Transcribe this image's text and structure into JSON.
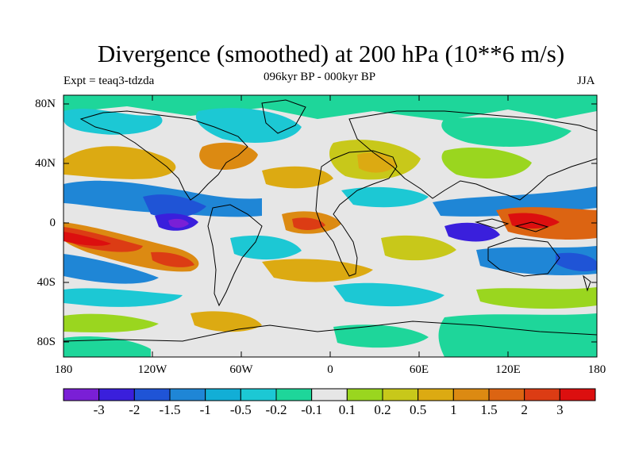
{
  "title": "Divergence (smoothed) at 200 hPa (10**6 m/s)",
  "subtitle": "096kyr BP - 000kyr BP",
  "expt": "Expt = teaq3-tdzda",
  "season": "JJA",
  "lat_ticks": [
    "80N",
    "40N",
    "0",
    "40S",
    "80S"
  ],
  "lon_ticks": [
    "180",
    "120W",
    "60W",
    "0",
    "60E",
    "120E",
    "180"
  ],
  "colorbar": {
    "labels": [
      "-3",
      "-2",
      "-1.5",
      "-1",
      "-0.5",
      "-0.2",
      "-0.1",
      "0.1",
      "0.2",
      "0.5",
      "1",
      "1.5",
      "2",
      "3"
    ],
    "colors": [
      "#7a1fd6",
      "#3a1fdc",
      "#1f54d6",
      "#1f86d6",
      "#12aed6",
      "#1cc8d4",
      "#1ed69a",
      "#e6e6e6",
      "#9ad61f",
      "#c8c81a",
      "#dcaa12",
      "#dc8a12",
      "#dc6412",
      "#dc3c14",
      "#dc0f0f"
    ]
  },
  "colors": {
    "background": "#e6e6e6",
    "coast": "#000000"
  }
}
